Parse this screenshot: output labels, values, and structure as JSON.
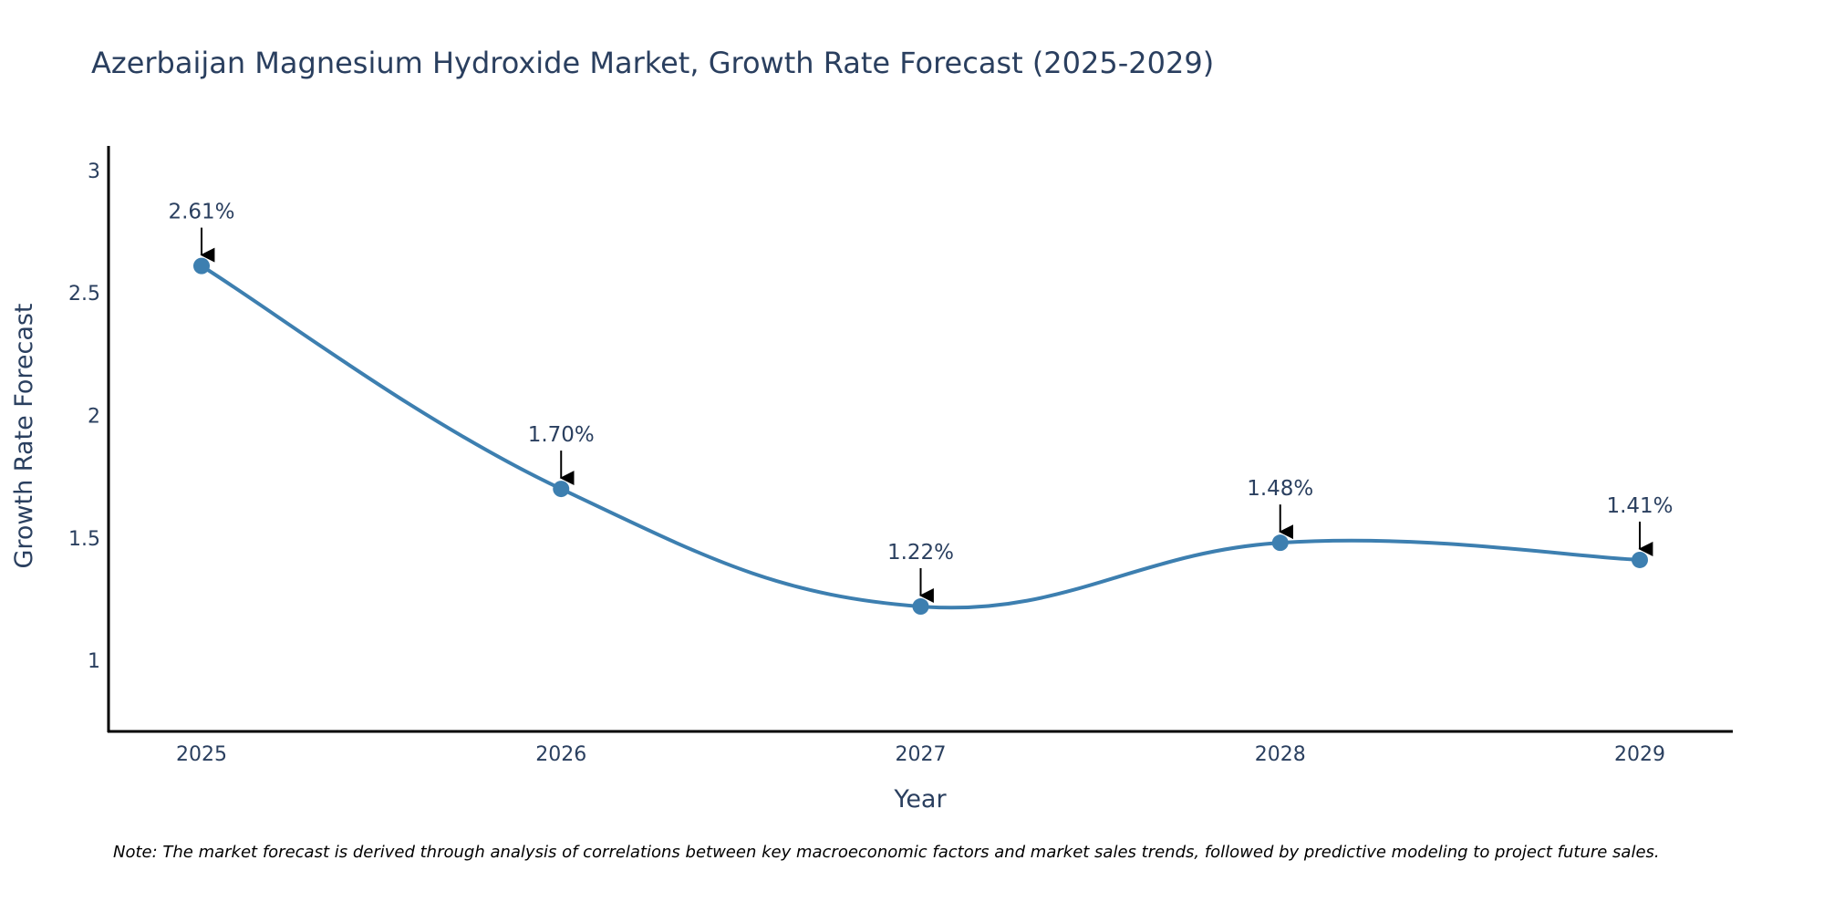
{
  "chart_data": {
    "type": "line",
    "title": "Azerbaijan Magnesium Hydroxide Market, Growth Rate Forecast (2025-2029)",
    "xlabel": "Year",
    "ylabel": "Growth Rate Forecast",
    "categories": [
      "2025",
      "2026",
      "2027",
      "2028",
      "2029"
    ],
    "series": [
      {
        "name": "Growth Rate Forecast",
        "values": [
          2.61,
          1.7,
          1.22,
          1.48,
          1.41
        ]
      }
    ],
    "data_labels": [
      "2.61%",
      "1.70%",
      "1.22%",
      "1.48%",
      "1.41%"
    ],
    "yticks": [
      "1",
      "1.5",
      "2",
      "2.5",
      "3"
    ],
    "ylim": [
      0.71,
      3.1
    ],
    "grid": false,
    "line_color": "#3d7fb0",
    "marker_color": "#3d7fb0",
    "note": "Note: The market forecast is derived through analysis of correlations between key macroeconomic factors and market sales trends, followed by predictive modeling to project future sales."
  }
}
